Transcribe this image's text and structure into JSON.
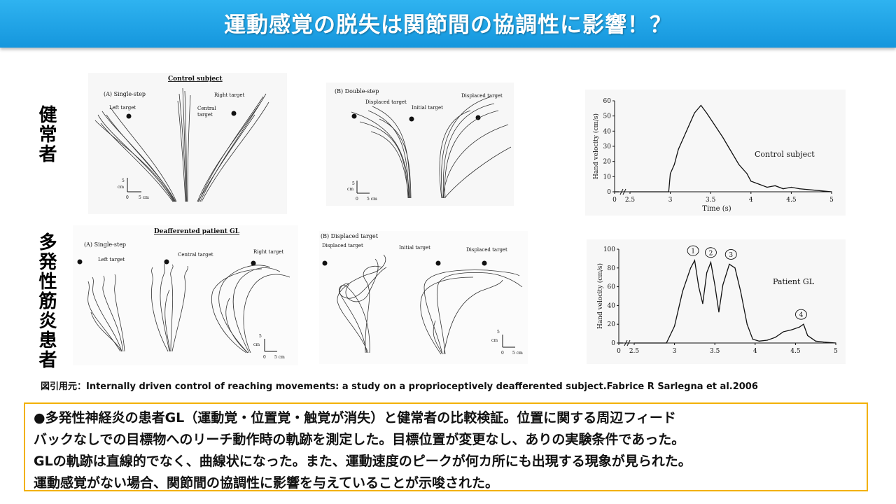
{
  "banner": {
    "title": "運動感覚の脱失は関節間の協調性に影響！？"
  },
  "rows": {
    "healthy_label": "健常者",
    "patient_label": "多発性筋炎患者"
  },
  "figure_top": {
    "heading": "Control subject",
    "single_step": {
      "panel": "(A) Single-step",
      "left": "Left target",
      "central1": "Central",
      "central2": "target",
      "right": "Right target"
    },
    "double_step": {
      "panel": "(B) Double-step",
      "displaced_a": "Displaced target",
      "initial": "Initial target",
      "displaced_b": "Displaced target"
    },
    "scale": {
      "v": "5",
      "unit": "cm",
      "zero": "0",
      "h": "5 cm"
    }
  },
  "figure_bottom": {
    "heading": "Deafferented patient GL",
    "single_step": {
      "panel": "(A) Single-step",
      "left": "Left target",
      "central": "Central target",
      "right": "Right target"
    },
    "displaced": {
      "panel": "(B) Displaced target",
      "displaced_a": "Displaced target",
      "initial": "Initial target",
      "displaced_b": "Displaced target"
    },
    "scale": {
      "v": "5",
      "unit": "cm",
      "zero": "0",
      "h": "5 cm"
    }
  },
  "chart_data": [
    {
      "type": "line",
      "title": "Control subject",
      "xlabel": "Time (s)",
      "ylabel": "Hand velocity (cm/s)",
      "xlim": [
        0,
        5
      ],
      "ylim": [
        0,
        60
      ],
      "xticks": [
        "0",
        "2.5",
        "3",
        "3.5",
        "4",
        "4.5",
        "5"
      ],
      "yticks": [
        "0",
        "10",
        "20",
        "30",
        "40",
        "50",
        "60"
      ],
      "x": [
        2.98,
        3.0,
        3.05,
        3.1,
        3.2,
        3.3,
        3.38,
        3.45,
        3.55,
        3.65,
        3.75,
        3.85,
        3.95,
        4.0,
        4.1,
        4.2,
        4.3,
        4.4,
        4.5,
        4.6,
        4.8,
        5.0
      ],
      "y": [
        0,
        12,
        18,
        28,
        40,
        52,
        57,
        52,
        44,
        36,
        27,
        18,
        12,
        7,
        5,
        3,
        4,
        2,
        3,
        2,
        1,
        0
      ]
    },
    {
      "type": "line",
      "title": "Patient GL",
      "xlabel": "",
      "ylabel": "Hand velocity (cm/s)",
      "xlim": [
        0,
        5
      ],
      "ylim": [
        0,
        100
      ],
      "xticks": [
        "0",
        "2.5",
        "3",
        "3.5",
        "4",
        "4.5",
        "5"
      ],
      "yticks": [
        "0",
        "20",
        "40",
        "60",
        "80",
        "100"
      ],
      "peak_labels": [
        "1",
        "2",
        "3",
        "4"
      ],
      "x": [
        2.9,
        3.0,
        3.1,
        3.2,
        3.25,
        3.3,
        3.35,
        3.4,
        3.45,
        3.5,
        3.55,
        3.6,
        3.68,
        3.75,
        3.82,
        3.9,
        3.97,
        4.05,
        4.15,
        4.25,
        4.35,
        4.45,
        4.55,
        4.6,
        4.65,
        4.75,
        4.85,
        5.0
      ],
      "y": [
        0,
        18,
        55,
        80,
        88,
        60,
        42,
        75,
        86,
        62,
        33,
        62,
        84,
        80,
        55,
        20,
        4,
        2,
        3,
        6,
        12,
        14,
        17,
        20,
        8,
        2,
        1,
        0
      ]
    }
  ],
  "citation": "図引用元：Internally driven control of reaching movements: a study on a proprioceptively deafferented subject.Fabrice R Sarlegna et al.2006",
  "summary": {
    "line1": "●多発性神経炎の患者GL（運動覚・位置覚・触覚が消失）と健常者の比較検証。位置に関する周辺フィード",
    "line2": "バックなしでの目標物へのリーチ動作時の軌跡を測定した。目標位置が変更なし、ありの実験条件であった。",
    "line3": "GLの軌跡は直線的でなく、曲線状になった。また、運動速度のピークが何カ所にも出現する現象が見られた。",
    "line4": "運動感覚がない場合、関節間の協調性に影響を与えていることが示唆された。"
  }
}
